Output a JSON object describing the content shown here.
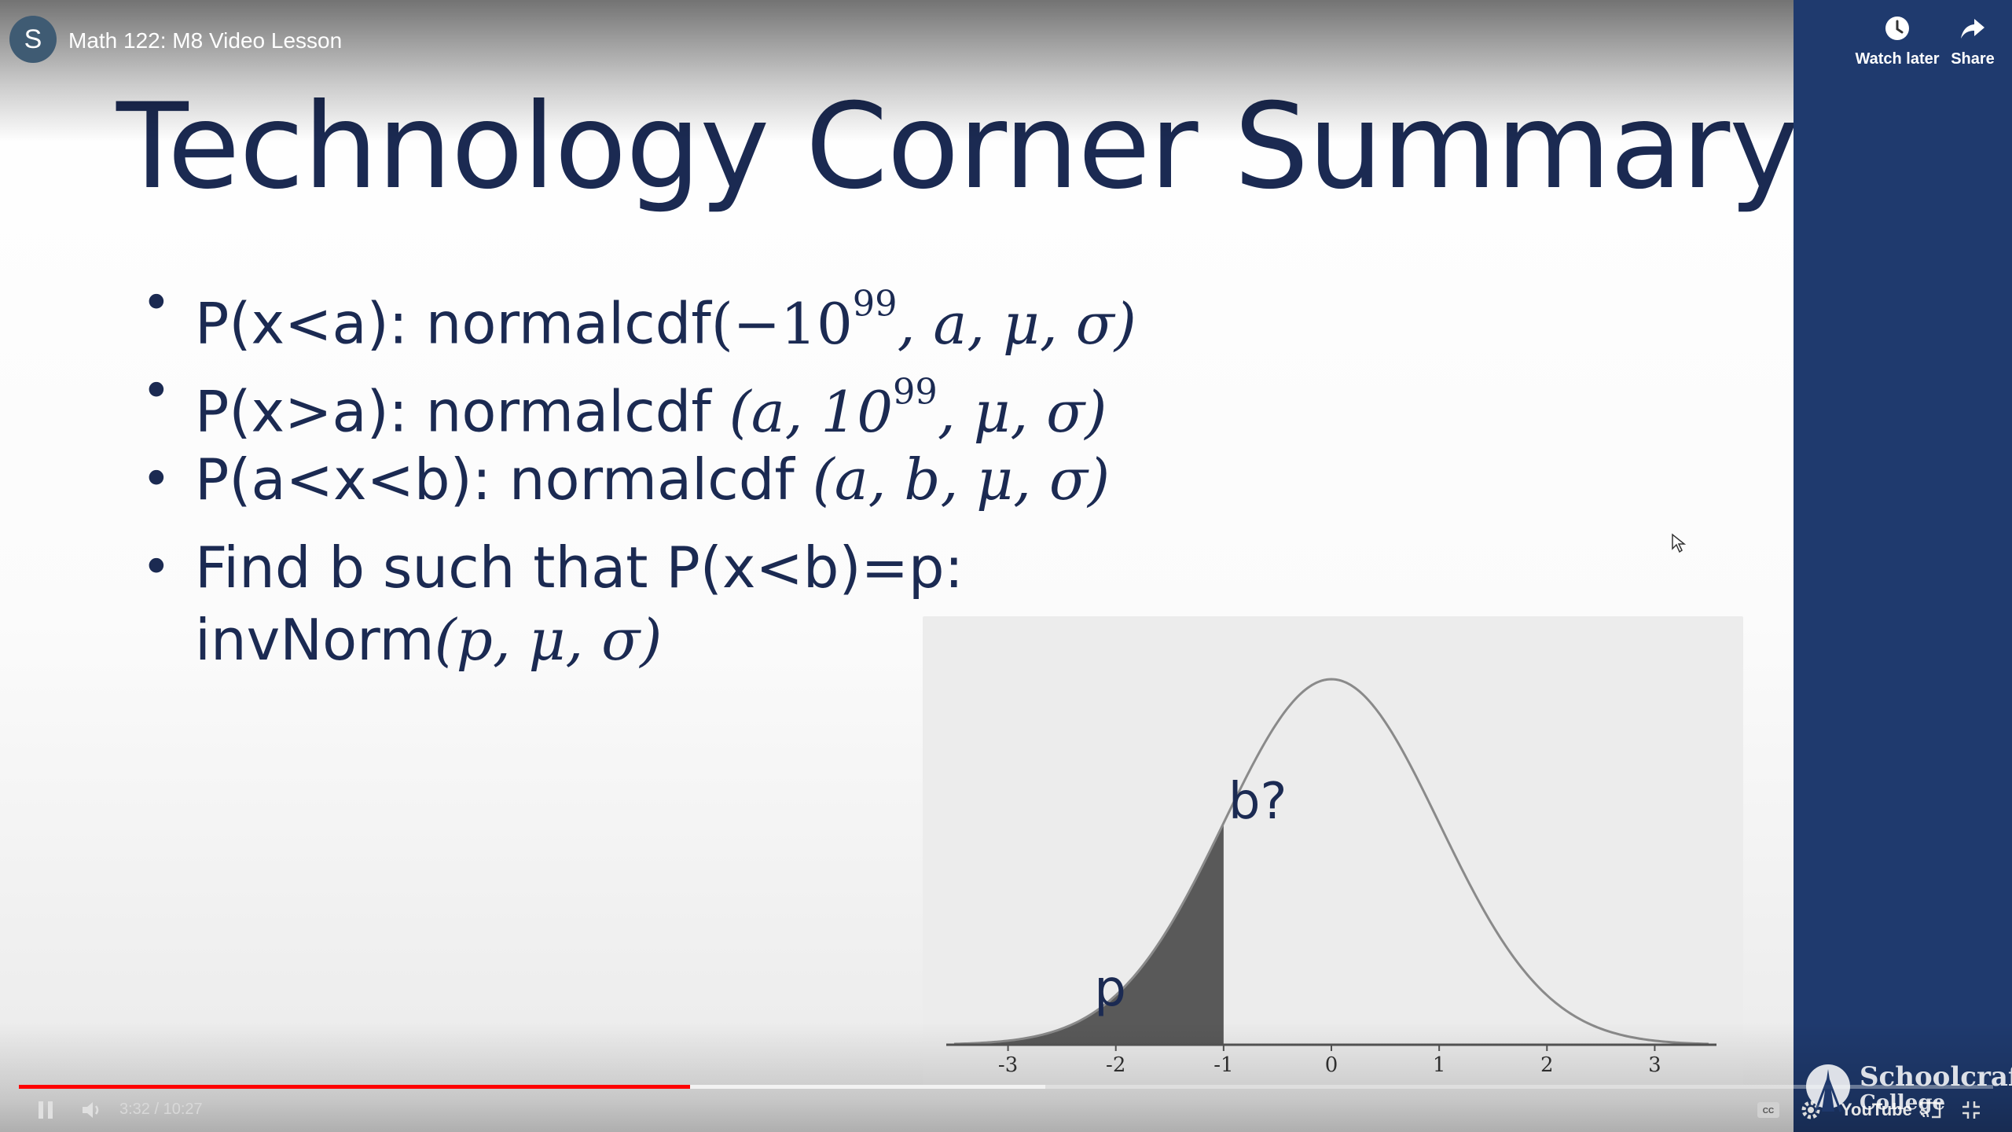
{
  "player": {
    "channel_initial": "S",
    "video_title": "Math 122: M8 Video Lesson",
    "watch_later_label": "Watch later",
    "share_label": "Share",
    "time_display": "3:32 / 10:27",
    "progress_played_fraction": 0.34,
    "progress_buffered_fraction": 0.52
  },
  "slide": {
    "title": "Technology Corner Summary",
    "bullet1_text": "P(x<a): normalcdf",
    "bullet1_math_open": "(−10",
    "bullet1_math_sup": "99",
    "bullet1_math_rest": ", a, μ, σ)",
    "bullet2_text": "P(x>a): normalcdf ",
    "bullet2_math_open": "(a, 10",
    "bullet2_math_sup": "99",
    "bullet2_math_rest": ", μ, σ)",
    "bullet3_text": "P(a<x<b): normalcdf ",
    "bullet3_math": "(a, b, μ, σ)",
    "bullet4_line1": "Find b such that P(x<b)=p:",
    "bullet4_text": "invNorm",
    "bullet4_math": "(p, μ, σ)"
  },
  "chart_data": {
    "type": "area",
    "curve": "standard normal density",
    "x_ticks": [
      "-3",
      "-2",
      "-1",
      "0",
      "1",
      "2",
      "3"
    ],
    "xlim": [
      -3.5,
      3.5
    ],
    "shaded_region": {
      "from": -3.5,
      "to": -1,
      "label": "p"
    },
    "point_label": "b?",
    "point_x": -1
  },
  "watermark": {
    "line1": "Schoolcraft",
    "line2": "College"
  },
  "colors": {
    "slide_text": "#1b2a52",
    "sidebar": "#1f3a6e",
    "progress": "#ff0000"
  }
}
